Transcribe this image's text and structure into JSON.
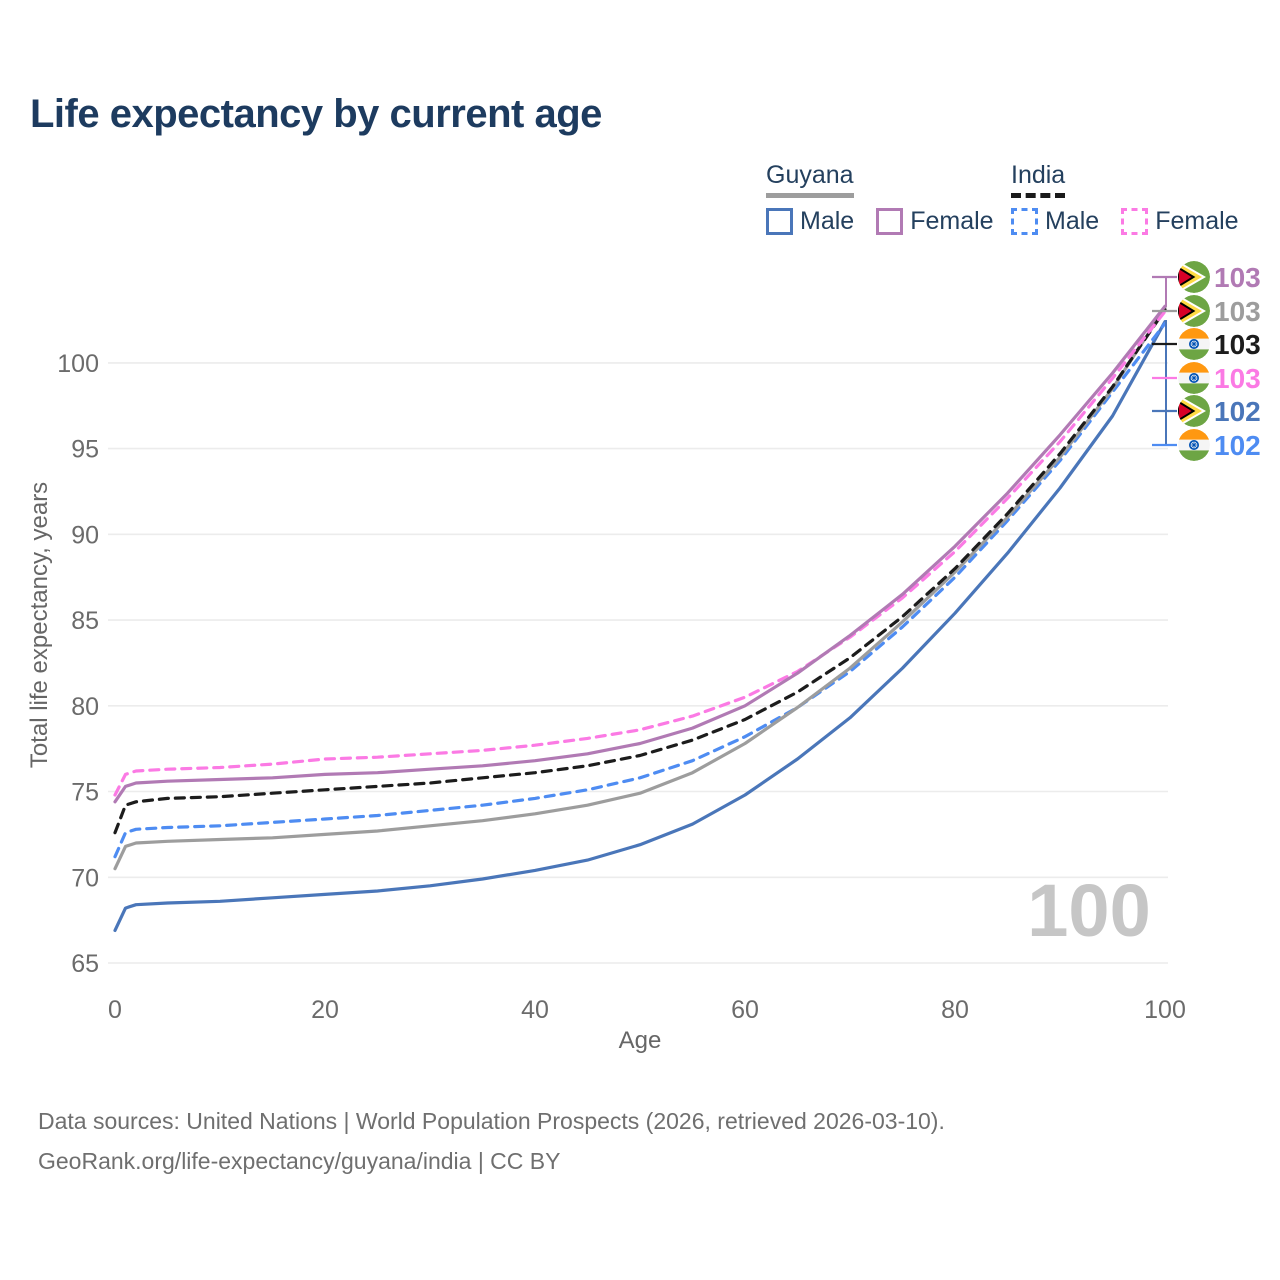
{
  "title": "Life expectancy by current age",
  "legend": {
    "groups": [
      {
        "country": "Guyana",
        "line_style": "solid",
        "underline_color": "#9d9d9d",
        "items": [
          {
            "label": "Male",
            "color": "#4a76b9",
            "dashed": false
          },
          {
            "label": "Female",
            "color": "#b17ab4",
            "dashed": false
          }
        ]
      },
      {
        "country": "India",
        "line_style": "dashed",
        "underline_color": "#1a1a1a",
        "items": [
          {
            "label": "Male",
            "color": "#4e8cf2",
            "dashed": true
          },
          {
            "label": "Female",
            "color": "#fb7ae4",
            "dashed": true
          }
        ]
      }
    ]
  },
  "chart_data": {
    "type": "line",
    "title": "Life expectancy by current age",
    "xlabel": "Age",
    "ylabel": "Total life expectancy, years",
    "x_ticks": [
      0,
      20,
      40,
      60,
      80,
      100
    ],
    "y_ticks": [
      65,
      70,
      75,
      80,
      85,
      90,
      95,
      100
    ],
    "xlim": [
      0,
      100
    ],
    "ylim": [
      65,
      104
    ],
    "grid": "horizontal",
    "legend_position": "top-right",
    "age_indicator": "100",
    "ages": [
      0,
      1,
      2,
      5,
      10,
      15,
      20,
      25,
      30,
      35,
      40,
      45,
      50,
      55,
      60,
      65,
      70,
      75,
      80,
      85,
      90,
      95,
      100
    ],
    "series": [
      {
        "id": "guyana-male",
        "name": "Guyana Male",
        "country": "Guyana",
        "sex": "Male",
        "color": "#4a76b9",
        "dashed": false,
        "values": [
          66.9,
          68.2,
          68.4,
          68.5,
          68.6,
          68.8,
          69.0,
          69.2,
          69.5,
          69.9,
          70.4,
          71.0,
          71.9,
          73.1,
          74.8,
          76.9,
          79.3,
          82.2,
          85.4,
          88.9,
          92.7,
          96.9,
          102.4
        ]
      },
      {
        "id": "india-male",
        "name": "India Male",
        "country": "India",
        "sex": "Male",
        "color": "#4e8cf2",
        "dashed": true,
        "values": [
          71.2,
          72.6,
          72.8,
          72.9,
          73.0,
          73.2,
          73.4,
          73.6,
          73.9,
          74.2,
          74.6,
          75.1,
          75.8,
          76.8,
          78.2,
          79.9,
          82.0,
          84.6,
          87.5,
          90.8,
          94.3,
          98.3,
          102.3
        ]
      },
      {
        "id": "guyana-total",
        "name": "Guyana",
        "country": "Guyana",
        "sex": "Both",
        "color": "#9d9d9d",
        "dashed": false,
        "values": [
          70.5,
          71.8,
          72.0,
          72.1,
          72.2,
          72.3,
          72.5,
          72.7,
          73.0,
          73.3,
          73.7,
          74.2,
          74.9,
          76.1,
          77.8,
          79.9,
          82.2,
          84.9,
          87.8,
          91.0,
          94.5,
          98.5,
          103.2
        ]
      },
      {
        "id": "india-total",
        "name": "India",
        "country": "India",
        "sex": "Both",
        "color": "#1c1c1c",
        "dashed": true,
        "values": [
          72.6,
          74.2,
          74.4,
          74.6,
          74.7,
          74.9,
          75.1,
          75.3,
          75.5,
          75.8,
          76.1,
          76.5,
          77.1,
          78.0,
          79.2,
          80.8,
          82.8,
          85.2,
          88.0,
          91.2,
          94.7,
          98.6,
          103.1
        ]
      },
      {
        "id": "india-female",
        "name": "India Female",
        "country": "India",
        "sex": "Female",
        "color": "#fb7ae4",
        "dashed": true,
        "values": [
          74.8,
          76.0,
          76.2,
          76.3,
          76.4,
          76.6,
          76.9,
          77.0,
          77.2,
          77.4,
          77.7,
          78.1,
          78.6,
          79.4,
          80.5,
          82.0,
          84.0,
          86.3,
          89.0,
          92.1,
          95.4,
          99.1,
          103.0
        ]
      },
      {
        "id": "guyana-female",
        "name": "Guyana Female",
        "country": "Guyana",
        "sex": "Female",
        "color": "#b17ab4",
        "dashed": false,
        "values": [
          74.4,
          75.3,
          75.5,
          75.6,
          75.7,
          75.8,
          76.0,
          76.1,
          76.3,
          76.5,
          76.8,
          77.2,
          77.8,
          78.7,
          80.0,
          81.9,
          84.1,
          86.5,
          89.3,
          92.4,
          95.8,
          99.4,
          103.3
        ]
      }
    ],
    "end_labels": [
      {
        "id": "guyana-female",
        "flag": "guyana",
        "value": 103,
        "color": "#b17ab4"
      },
      {
        "id": "guyana-total",
        "flag": "guyana",
        "value": 103,
        "color": "#9d9d9d"
      },
      {
        "id": "india-total",
        "flag": "india",
        "value": 103,
        "color": "#1c1c1c"
      },
      {
        "id": "india-female",
        "flag": "india",
        "value": 103,
        "color": "#fb7ae4"
      },
      {
        "id": "guyana-male",
        "flag": "guyana",
        "value": 102,
        "color": "#4a76b9"
      },
      {
        "id": "india-male",
        "flag": "india",
        "value": 102,
        "color": "#4e8cf2"
      }
    ]
  },
  "footer": {
    "line1": "Data sources: United Nations | World Population Prospects (2026, retrieved 2026-03-10).",
    "line2": "GeoRank.org/life-expectancy/guyana/india | CC BY"
  }
}
